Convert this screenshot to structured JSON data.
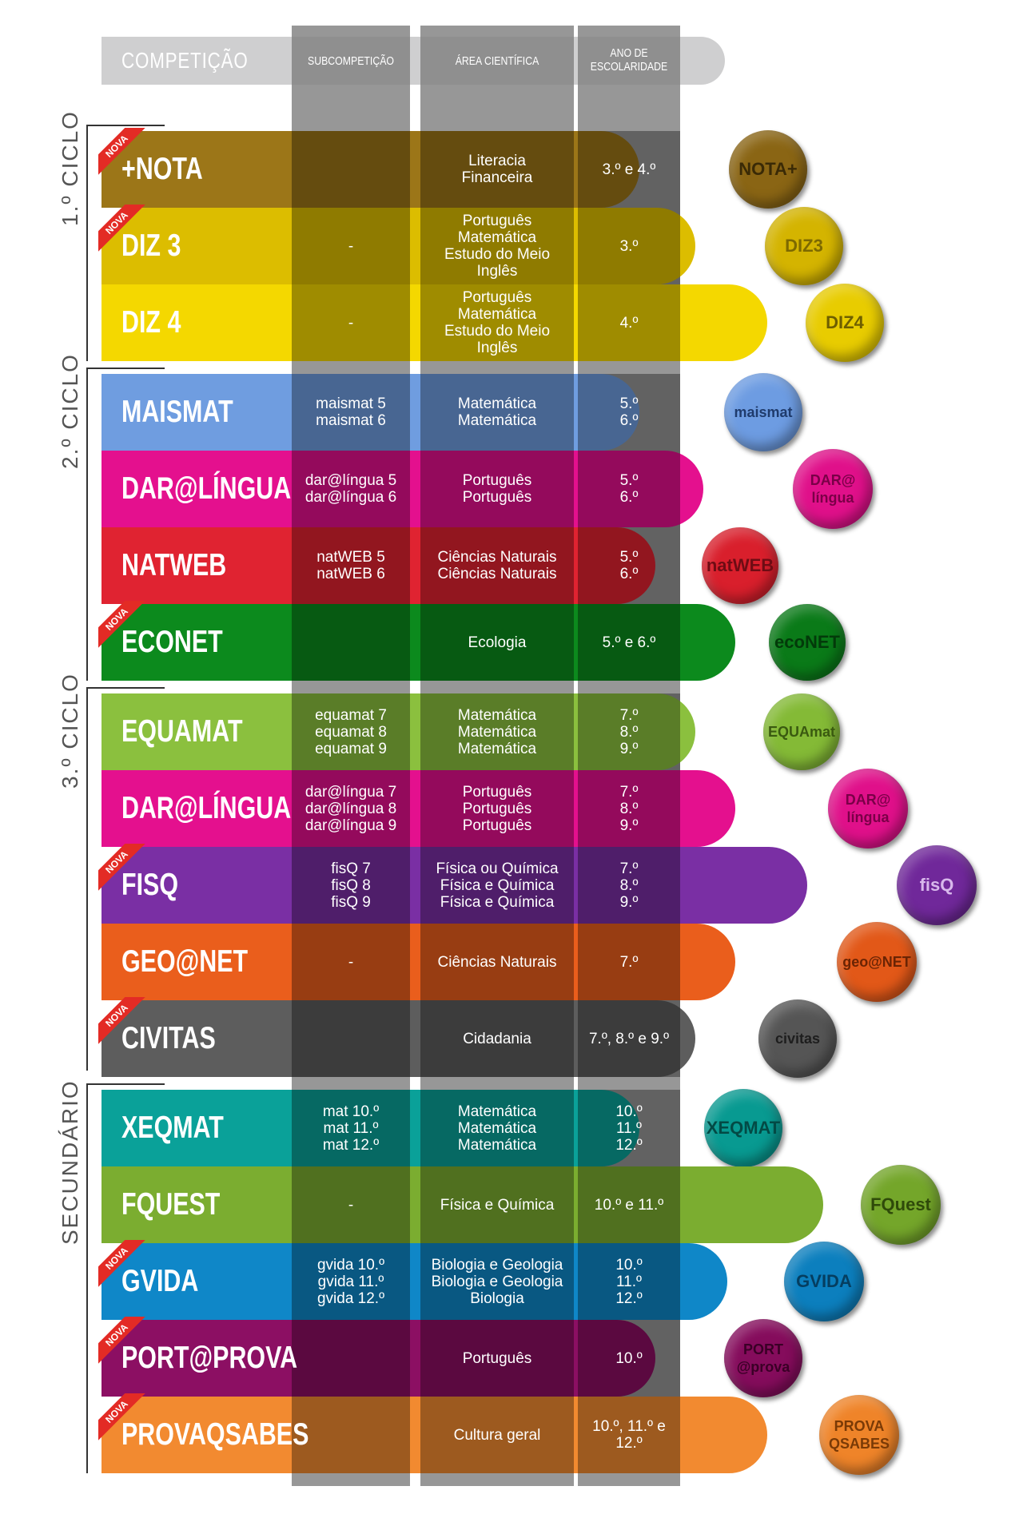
{
  "header": {
    "competicao": "COMPETIÇÃO",
    "subcompeticao": "SUBCOMPETIÇÃO",
    "area": "ÁREA CIENTÍFICA",
    "ano_line1": "ANO DE",
    "ano_line2": "ESCOLARIDADE"
  },
  "nova_label": "NOVA",
  "cycles": [
    {
      "label": "1.º CICLO"
    },
    {
      "label": "2.º CICLO"
    },
    {
      "label": "3.º CICLO"
    },
    {
      "label": "SECUNDÁRIO"
    }
  ],
  "rows": [
    {
      "name": "+NOTA",
      "sub": "",
      "area": "Literacia\nFinanceira",
      "ano": "3.º e 4.º",
      "color": "#9c7618",
      "nova": true,
      "badge": "NOTA+",
      "badge_color": "#8a6514",
      "badge_text": "#3a2a06"
    },
    {
      "name": "DIZ 3",
      "sub": "-",
      "area": "Português\nMatemática\nEstudo do Meio\nInglês",
      "ano": "3.º",
      "color": "#dcbd00",
      "nova": true,
      "badge": "DIZ3",
      "badge_color": "#d4b400",
      "badge_text": "#7d6900"
    },
    {
      "name": "DIZ 4",
      "sub": "-",
      "area": "Português\nMatemática\nEstudo do Meio\nInglês",
      "ano": "4.º",
      "color": "#f4d800",
      "nova": false,
      "badge": "DIZ4",
      "badge_color": "#e8cc00",
      "badge_text": "#6e5f00"
    },
    {
      "name": "MAISMAT",
      "sub": "maismat 5\nmaismat 6",
      "area": "Matemática\nMatemática",
      "ano": "5.º\n6.º",
      "color": "#6f9de0",
      "nova": false,
      "badge": "maismat",
      "badge_color": "#6d9ce2",
      "badge_text": "#1f3b6c"
    },
    {
      "name": "DAR@LÍNGUA",
      "sub": "dar@língua 5\ndar@língua 6",
      "area": "Português\nPortuguês",
      "ano": "5.º\n6.º",
      "color": "#e4108e",
      "nova": false,
      "badge": "DAR@\nlíngua",
      "badge_color": "#e0108a",
      "badge_text": "#7a0047"
    },
    {
      "name": "NATWEB",
      "sub": "natWEB 5\nnatWEB 6",
      "area": "Ciências Naturais\nCiências Naturais",
      "ano": "5.º\n6.º",
      "color": "#e02331",
      "nova": false,
      "badge": "natWEB",
      "badge_color": "#d91f2c",
      "badge_text": "#6e0c14"
    },
    {
      "name": "ECONET",
      "sub": "",
      "area": "Ecologia",
      "ano": "5.º e 6.º",
      "color": "#0c8a1d",
      "nova": true,
      "badge": "ecoNET",
      "badge_color": "#0a7a18",
      "badge_text": "#033a0a"
    },
    {
      "name": "EQUAMAT",
      "sub": "equamat 7\nequamat 8\nequamat 9",
      "area": "Matemática\nMatemática\nMatemática",
      "ano": "7.º\n8.º\n9.º",
      "color": "#8bc03e",
      "nova": false,
      "badge": "EQUAmat",
      "badge_color": "#84ba36",
      "badge_text": "#3a5a10"
    },
    {
      "name": "DAR@LÍNGUA",
      "sub": "dar@língua 7\ndar@língua 8\ndar@língua 9",
      "area": "Português\nPortuguês\nPortuguês",
      "ano": "7.º\n8.º\n9.º",
      "color": "#e4108e",
      "nova": false,
      "badge": "DAR@\nlíngua",
      "badge_color": "#e0108a",
      "badge_text": "#7a0047"
    },
    {
      "name": "FISQ",
      "sub": "fisQ 7\nfisQ 8\nfisQ 9",
      "area": "Física ou Química\nFísica e Química\nFísica e Química",
      "ano": "7.º\n8.º\n9.º",
      "color": "#7a2fa4",
      "nova": true,
      "badge": "fisQ",
      "badge_color": "#70289a",
      "badge_text": "#d8b8ec"
    },
    {
      "name": "GEO@NET",
      "sub": "-",
      "area": "Ciências Naturais",
      "ano": "7.º",
      "color": "#ea5e1c",
      "nova": false,
      "badge": "geo@NET",
      "badge_color": "#e25818",
      "badge_text": "#6a2404"
    },
    {
      "name": "CIVITAS",
      "sub": "",
      "area": "Cidadania",
      "ano": "7.º, 8.º e 9.º",
      "color": "#5d5d5d",
      "nova": true,
      "badge": "civitas",
      "badge_color": "#555555",
      "badge_text": "#1e1e1e"
    },
    {
      "name": "XEQMAT",
      "sub": "mat 10.º\nmat 11.º\nmat 12.º",
      "area": "Matemática\nMatemática\nMatemática",
      "ano": "10.º\n11.º\n12.º",
      "color": "#0aa199",
      "nova": false,
      "badge": "XEQMAT",
      "badge_color": "#089a91",
      "badge_text": "#034a45"
    },
    {
      "name": "FQUEST",
      "sub": "-",
      "area": "Física e Química",
      "ano": "10.º e 11.º",
      "color": "#7bad30",
      "nova": false,
      "badge": "FQuest",
      "badge_color": "#74a62a",
      "badge_text": "#2f4a0a"
    },
    {
      "name": "GVIDA",
      "sub": "gvida 10.º\ngvida 11.º\ngvida 12.º",
      "area": "Biologia e Geologia\nBiologia e Geologia\nBiologia",
      "ano": "10.º\n11.º\n12.º",
      "color": "#0f87c8",
      "nova": true,
      "badge": "GVIDA",
      "badge_color": "#0c7fbe",
      "badge_text": "#053e60"
    },
    {
      "name": "PORT@PROVA",
      "sub": "",
      "area": "Português",
      "ano": "10.º",
      "color": "#8c0f63",
      "nova": true,
      "badge": "PORT\n@prova",
      "badge_color": "#850c5c",
      "badge_text": "#3a0026"
    },
    {
      "name": "PROVAQSABES",
      "sub": "",
      "area": "Cultura geral",
      "ano": "10.º, 11.º e 12.º",
      "color": "#f28a30",
      "nova": true,
      "badge": "PROVA\nQSABES",
      "badge_color": "#ef8429",
      "badge_text": "#7a3a06"
    }
  ]
}
